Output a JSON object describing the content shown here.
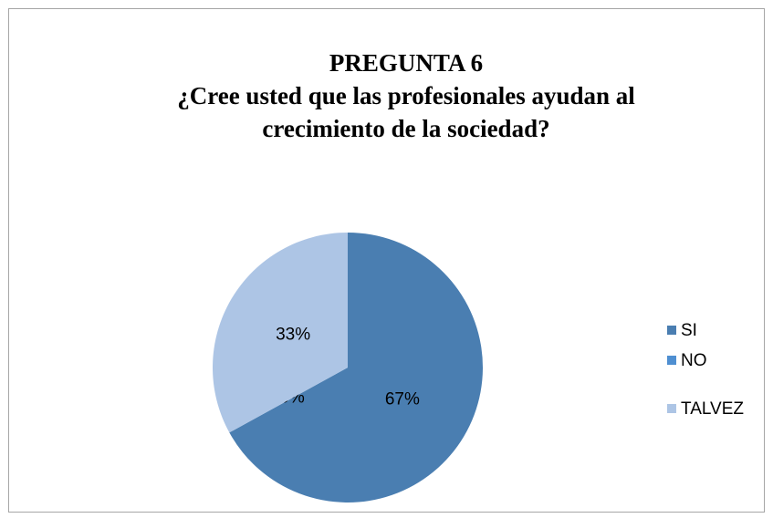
{
  "chart_data": {
    "type": "pie",
    "title": [
      "PREGUNTA 6",
      "¿Cree usted que las profesionales ayudan al",
      "crecimiento de la sociedad?"
    ],
    "categories": [
      "SI",
      "NO",
      "TALVEZ"
    ],
    "values": [
      67,
      0,
      33
    ],
    "value_labels": [
      "67%",
      "0%",
      "33%"
    ],
    "colors": [
      "#4a7eb1",
      "#4f8fd1",
      "#adc5e5"
    ],
    "legend": "right"
  }
}
